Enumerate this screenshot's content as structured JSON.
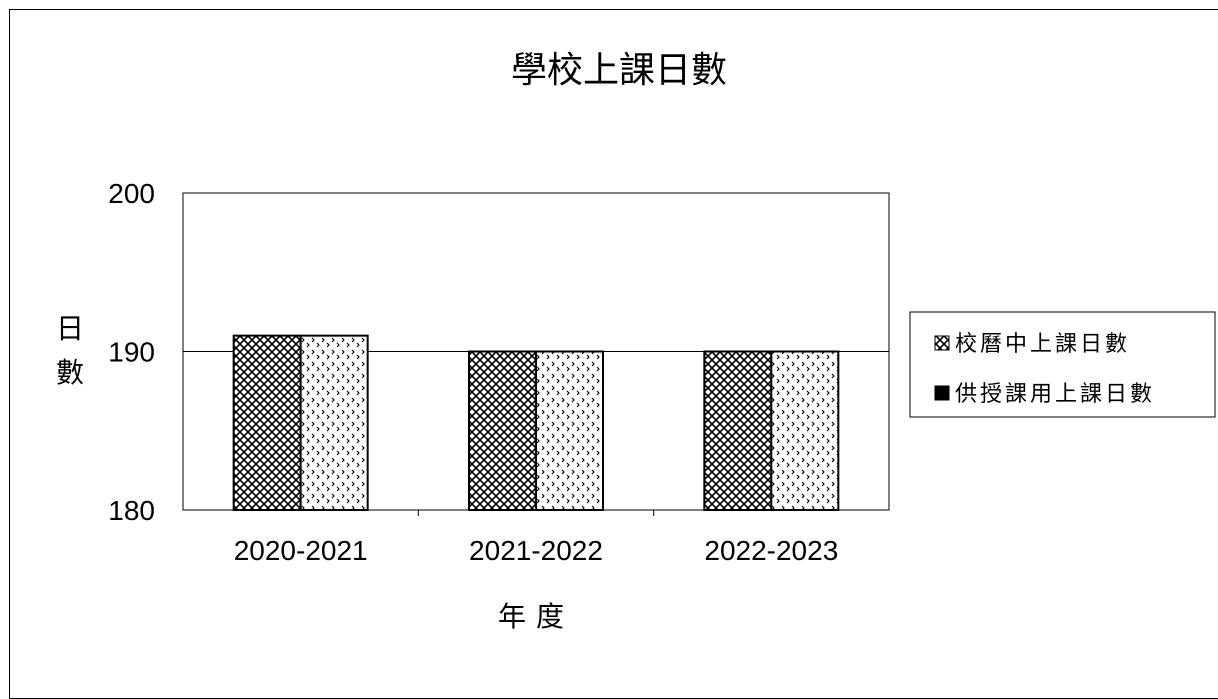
{
  "chart_data": {
    "type": "bar",
    "title": "學校上課日數",
    "xlabel": "年度",
    "ylabel": "日數",
    "categories": [
      "2020-2021",
      "2021-2022",
      "2022-2023"
    ],
    "series": [
      {
        "name": "校曆中上課日數",
        "values": [
          191,
          190,
          190
        ]
      },
      {
        "name": "供授課用上課日數",
        "values": [
          191,
          190,
          190
        ]
      }
    ],
    "ylim": [
      180,
      200
    ],
    "yticks": [
      180,
      190,
      200
    ],
    "grid": true,
    "legend": "right"
  }
}
